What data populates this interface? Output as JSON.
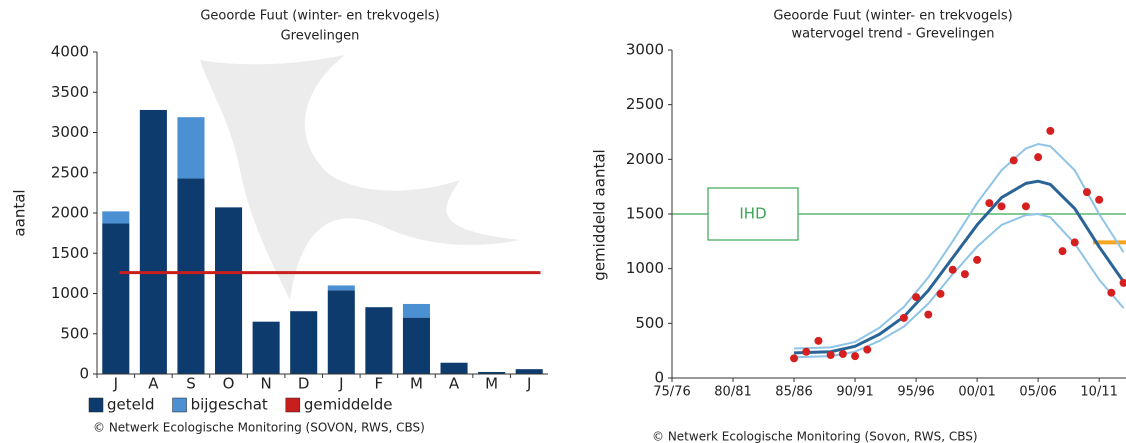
{
  "chart_data": [
    {
      "type": "bar",
      "stacked": true,
      "title": "Geoorde Fuut (winter- en trekvogels)",
      "subtitle": "Grevelingen",
      "y_label": "aantal",
      "categories": [
        "J",
        "A",
        "S",
        "O",
        "N",
        "D",
        "J",
        "F",
        "M",
        "A",
        "M",
        "J"
      ],
      "series": [
        {
          "name": "geteld",
          "color": "#0d3b6e",
          "values": [
            1870,
            3280,
            2430,
            2070,
            650,
            780,
            1040,
            830,
            700,
            140,
            25,
            60
          ]
        },
        {
          "name": "bijgeschat",
          "color": "#4a90d2",
          "values": [
            150,
            0,
            760,
            0,
            0,
            0,
            60,
            0,
            170,
            0,
            0,
            0
          ]
        }
      ],
      "reference_lines": [
        {
          "name": "gemiddelde",
          "color": "#c81e1e",
          "value": 1260
        }
      ],
      "ylim": [
        0,
        4000
      ],
      "yticks": [
        0,
        500,
        1000,
        1500,
        2000,
        2500,
        3000,
        3500,
        4000
      ],
      "source": "© Netwerk Ecologische Monitoring (SOVON, RWS, CBS)"
    },
    {
      "type": "scatter",
      "title": "Geoorde Fuut (winter- en trekvogels)",
      "subtitle": "watervogel trend - Grevelingen",
      "y_label": "gemiddeld aantal",
      "xlim": [
        1975,
        2012.2
      ],
      "xticks": [
        {
          "value": 1975,
          "label": "75/76"
        },
        {
          "value": 1980,
          "label": "80/81"
        },
        {
          "value": 1985,
          "label": "85/86"
        },
        {
          "value": 1990,
          "label": "90/91"
        },
        {
          "value": 1995,
          "label": "95/96"
        },
        {
          "value": 2000,
          "label": "00/01"
        },
        {
          "value": 2005,
          "label": "05/06"
        },
        {
          "value": 2010,
          "label": "10/11"
        }
      ],
      "ylim": [
        0,
        3000
      ],
      "yticks": [
        0,
        500,
        1000,
        1500,
        2000,
        2500,
        3000
      ],
      "series": [
        {
          "style": "line",
          "color": "#8fc4e6",
          "x": [
            1985,
            1988,
            1990,
            1992,
            1994,
            1996,
            1998,
            2000,
            2002,
            2004,
            2005,
            2006,
            2008,
            2010,
            2012
          ],
          "values": [
            270,
            280,
            330,
            460,
            650,
            920,
            1250,
            1600,
            1900,
            2100,
            2140,
            2120,
            1900,
            1500,
            1150
          ]
        },
        {
          "style": "line",
          "color": "#8fc4e6",
          "x": [
            1985,
            1988,
            1990,
            1992,
            1994,
            1996,
            1998,
            2000,
            2002,
            2004,
            2005,
            2006,
            2008,
            2010,
            2012
          ],
          "values": [
            190,
            200,
            240,
            340,
            470,
            680,
            950,
            1200,
            1400,
            1490,
            1500,
            1470,
            1230,
            900,
            640
          ]
        },
        {
          "style": "line",
          "color": "#2a6496",
          "x": [
            1985,
            1988,
            1990,
            1992,
            1994,
            1996,
            1998,
            2000,
            2002,
            2004,
            2005,
            2006,
            2008,
            2010,
            2012
          ],
          "values": [
            230,
            240,
            290,
            400,
            560,
            800,
            1100,
            1400,
            1650,
            1780,
            1800,
            1770,
            1550,
            1200,
            880
          ]
        },
        {
          "style": "points",
          "color": "#d62020",
          "x": [
            1985,
            1986,
            1987,
            1988,
            1989,
            1990,
            1991,
            1994,
            1995,
            1996,
            1997,
            1998,
            1999,
            2000,
            2001,
            2002,
            2003,
            2004,
            2005,
            2006,
            2007,
            2008,
            2009,
            2010,
            2011,
            2012
          ],
          "values": [
            180,
            240,
            340,
            210,
            220,
            200,
            260,
            550,
            740,
            580,
            770,
            990,
            950,
            1080,
            1600,
            1570,
            1990,
            1570,
            2020,
            2260,
            1160,
            1240,
            1700,
            1630,
            780,
            870
          ]
        }
      ],
      "reference_lines": [
        {
          "label": "IHD",
          "color": "#3aa655",
          "value": 1500
        },
        {
          "color": "#f5a623",
          "value": 1240,
          "x": [
            2009.5,
            2012.2
          ]
        }
      ],
      "source": "© Netwerk Ecologische Monitoring (Sovon, RWS, CBS)"
    }
  ]
}
